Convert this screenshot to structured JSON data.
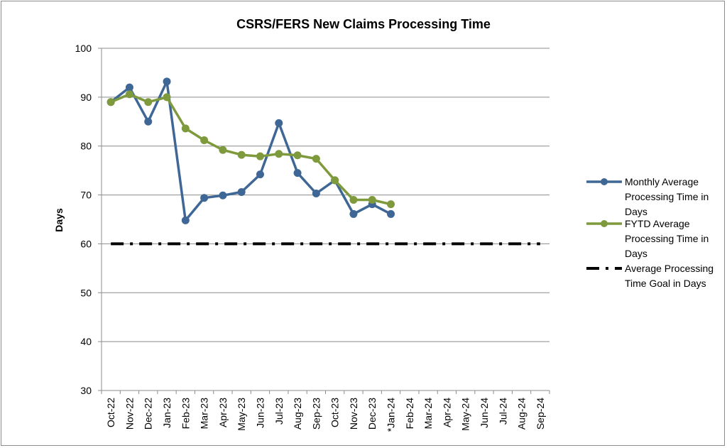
{
  "chart_data": {
    "type": "line",
    "title": "CSRS/FERS New Claims Processing Time",
    "xlabel": "",
    "ylabel": "Days",
    "ylim": [
      30,
      100
    ],
    "yticks": [
      30,
      40,
      50,
      60,
      70,
      80,
      90,
      100
    ],
    "grid": true,
    "legend_position": "right",
    "categories": [
      "Oct-22",
      "Nov-22",
      "Dec-22",
      "Jan-23",
      "Feb-23",
      "Mar-23",
      "Apr-23",
      "May-23",
      "Jun-23",
      "Jul-23",
      "Aug-23",
      "Sep-23",
      "Oct-23",
      "Nov-23",
      "Dec-23",
      "*Jan-24",
      "Feb-24",
      "Mar-24",
      "Apr-24",
      "May-24",
      "Jun-24",
      "Jul-24",
      "Aug-24",
      "Sep-24"
    ],
    "series": [
      {
        "name": "Monthly Average Processing Time in Days",
        "legend_lines": [
          "Monthly Average",
          "Processing Time in",
          "Days"
        ],
        "color": "#3F6796",
        "style": "line-marker",
        "values": [
          89,
          92,
          85,
          93.2,
          64.8,
          69.4,
          69.9,
          70.6,
          74.2,
          84.7,
          74.5,
          70.3,
          73,
          66.1,
          68.1,
          66.1,
          null,
          null,
          null,
          null,
          null,
          null,
          null,
          null
        ]
      },
      {
        "name": "FYTD Average Processing Time in Days",
        "legend_lines": [
          "FYTD Average",
          "Processing Time in",
          "Days"
        ],
        "color": "#7E9A3C",
        "style": "line-marker",
        "values": [
          89,
          90.6,
          89,
          90,
          83.6,
          81.2,
          79.2,
          78.2,
          77.9,
          78.4,
          78.1,
          77.4,
          73,
          69,
          69,
          68.1,
          null,
          null,
          null,
          null,
          null,
          null,
          null,
          null
        ]
      },
      {
        "name": "Average Processing Time Goal in Days",
        "legend_lines": [
          "Average Processing",
          "Time Goal in Days"
        ],
        "color": "#000000",
        "style": "dash-dot",
        "values": [
          60,
          60,
          60,
          60,
          60,
          60,
          60,
          60,
          60,
          60,
          60,
          60,
          60,
          60,
          60,
          60,
          60,
          60,
          60,
          60,
          60,
          60,
          60,
          60
        ]
      }
    ]
  }
}
